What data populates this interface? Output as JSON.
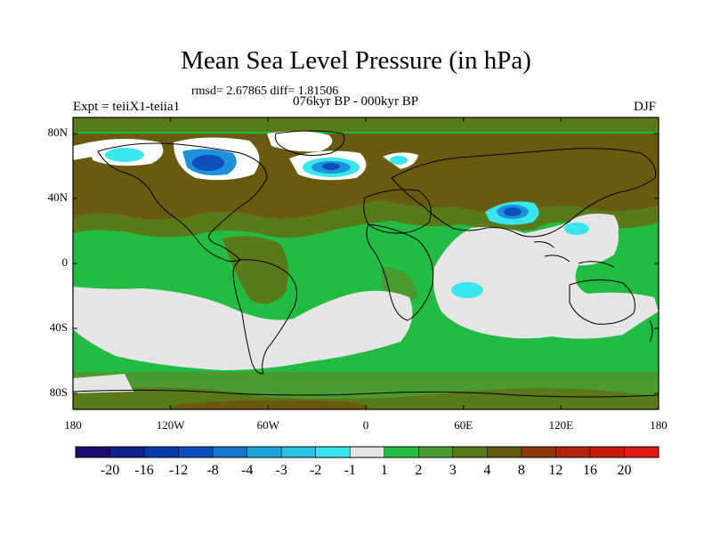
{
  "title": "Mean Sea Level Pressure (in hPa)",
  "stats": "rmsd= 2.67865 diff= 1.81506",
  "expt": "Expt = teiiX1-teiia1",
  "period": "076kyr BP - 000kyr BP",
  "season": "DJF",
  "lat_labels": [
    "80N",
    "40N",
    "0",
    "40S",
    "80S"
  ],
  "lon_labels": [
    "180",
    "120W",
    "60W",
    "0",
    "60E",
    "120E",
    "180"
  ],
  "colorbar": {
    "labels": [
      "-20",
      "-16",
      "-12",
      "-8",
      "-4",
      "-3",
      "-2",
      "-1",
      "1",
      "2",
      "3",
      "4",
      "8",
      "12",
      "16",
      "20"
    ],
    "colors": [
      "#1a0a6e",
      "#12208e",
      "#0a3aa8",
      "#0a50b8",
      "#1678cc",
      "#1ea6dc",
      "#28c4e6",
      "#3ae6ee",
      "#e6e6e6",
      "#22bb44",
      "#4a9a2e",
      "#5a7a1a",
      "#6a5a10",
      "#8a3a0a",
      "#b22410",
      "#cc1a10",
      "#e01a14"
    ]
  },
  "map_colors": {
    "ocean_light_green": "#22bb44",
    "mid_green": "#4a9a2e",
    "olive": "#5a7a1a",
    "brown": "#6a5a10",
    "near_zero_gray": "#e6e6e6",
    "white": "#ffffff",
    "light_blue": "#3ae6ee",
    "mid_blue": "#1e90dc",
    "deep_blue": "#0a50b8"
  }
}
